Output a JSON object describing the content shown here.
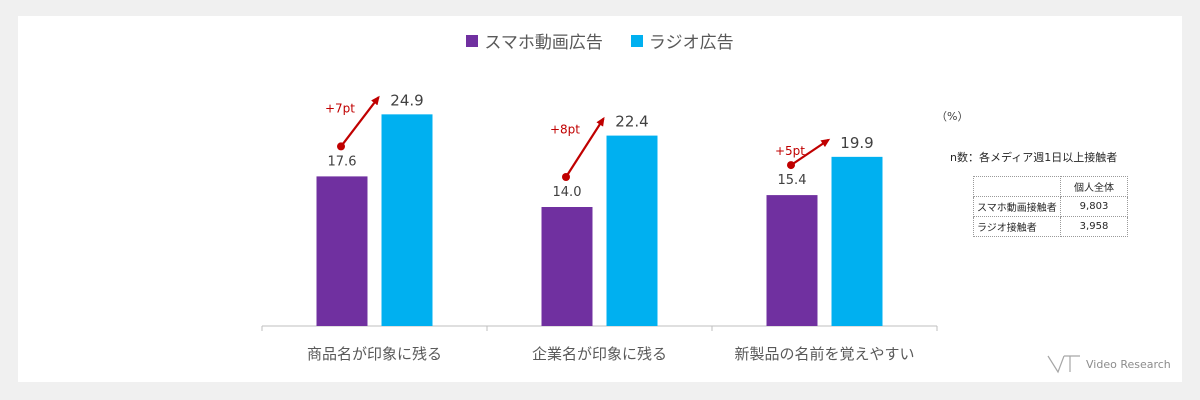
{
  "legend": [
    {
      "label": "スマホ動画広告",
      "color": "#7030a0"
    },
    {
      "label": "ラジオ広告",
      "color": "#00b0f0"
    }
  ],
  "unit_label": "（%）",
  "sample": {
    "title": "n数：各メディア週1日以上接触者",
    "header": [
      "",
      "個人全体"
    ],
    "rows": [
      {
        "label": "スマホ動画接触者",
        "value": "9,803"
      },
      {
        "label": "ラジオ接触者",
        "value": "3,958"
      }
    ]
  },
  "brand": "Video Research",
  "chart_data": {
    "type": "bar",
    "categories": [
      "商品名が印象に残る",
      "企業名が印象に残る",
      "新製品の名前を覚えやすい"
    ],
    "series": [
      {
        "name": "スマホ動画広告",
        "values": [
          17.6,
          14.0,
          15.4
        ],
        "labels": [
          "17.6",
          "14.0",
          "15.4"
        ],
        "color": "#7030a0"
      },
      {
        "name": "ラジオ広告",
        "values": [
          24.9,
          22.4,
          19.9
        ],
        "labels": [
          "24.9",
          "22.4",
          "19.9"
        ],
        "color": "#00b0f0"
      }
    ],
    "annotations": [
      "+7pt",
      "+8pt",
      "+5pt"
    ],
    "annotation_color": "#c00000",
    "ylim": [
      0,
      30
    ]
  }
}
